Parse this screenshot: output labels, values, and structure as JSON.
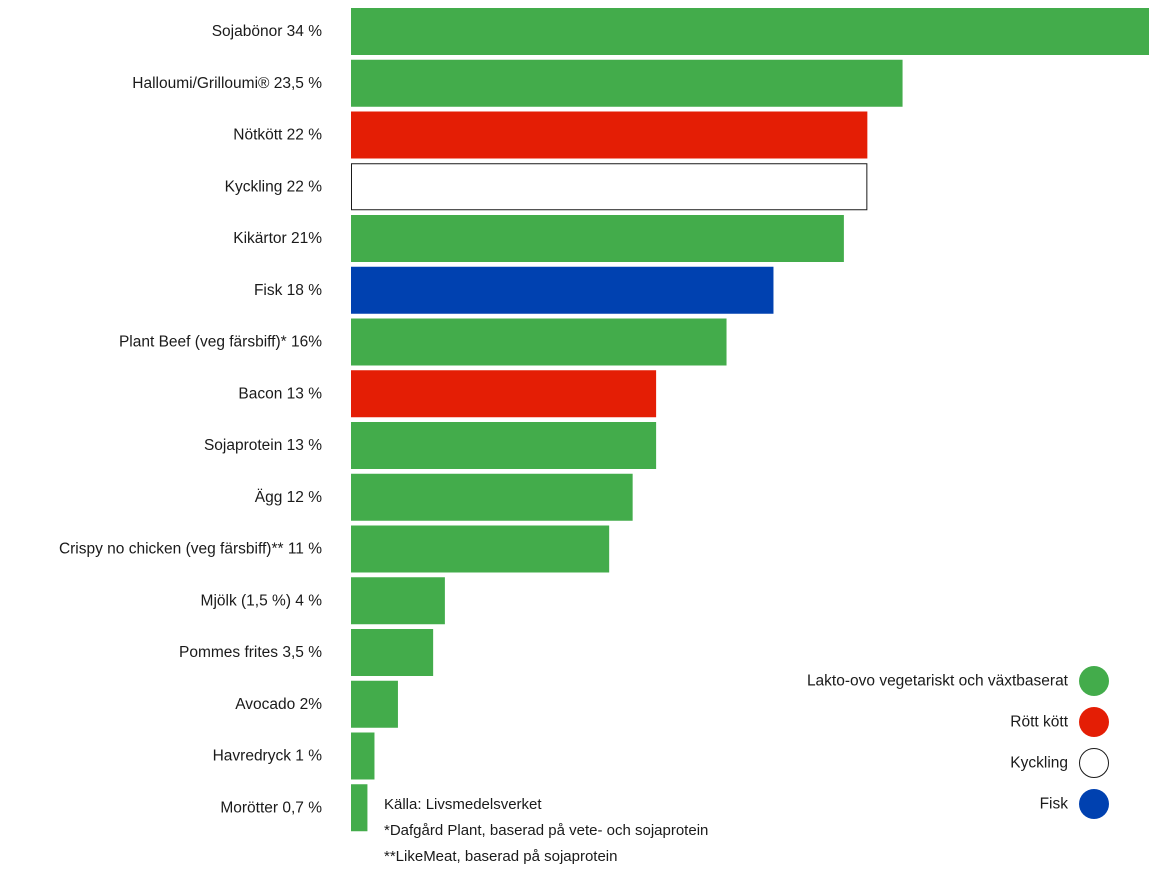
{
  "chart_data": {
    "type": "bar",
    "orientation": "horizontal",
    "categories": [
      "Sojabönor 34 %",
      "Halloumi/Grilloumi® 23,5 %",
      "Nötkött 22 %",
      "Kyckling 22 %",
      "Kikärtor 21%",
      "Fisk 18 %",
      "Plant Beef (veg färsbiff)* 16%",
      "Bacon 13 %",
      "Sojaprotein 13 %",
      "Ägg 12 %",
      "Crispy no chicken (veg färsbiff)** 11 %",
      "Mjölk (1,5 %) 4 %",
      "Pommes frites 3,5 %",
      "Avocado 2%",
      "Havredryck 1 %",
      "Morötter 0,7 %"
    ],
    "values": [
      34,
      23.5,
      22,
      22,
      21,
      18,
      16,
      13,
      13,
      12,
      11,
      4,
      3.5,
      2,
      1,
      0.7
    ],
    "groups": [
      "veg",
      "veg",
      "red",
      "chicken",
      "veg",
      "fish",
      "veg",
      "red",
      "veg",
      "veg",
      "veg",
      "veg",
      "veg",
      "veg",
      "veg",
      "veg"
    ],
    "xlim": [
      0,
      34
    ],
    "grid": false,
    "legend_position": "bottom-right",
    "legend": [
      {
        "key": "veg",
        "label": "Lakto-ovo vegetariskt och växtbaserat",
        "color": "#43ac4b"
      },
      {
        "key": "red",
        "label": "Rött kött",
        "color": "#e41e05"
      },
      {
        "key": "chicken",
        "label": "Kyckling",
        "color": "#ffffff"
      },
      {
        "key": "fish",
        "label": "Fisk",
        "color": "#0041b0"
      }
    ]
  },
  "notes": {
    "source": "Källa: Livsmedelsverket",
    "note1": "*Dafgård Plant, baserad på vete- och sojaprotein",
    "note2": "**LikeMeat, baserad på sojaprotein"
  }
}
